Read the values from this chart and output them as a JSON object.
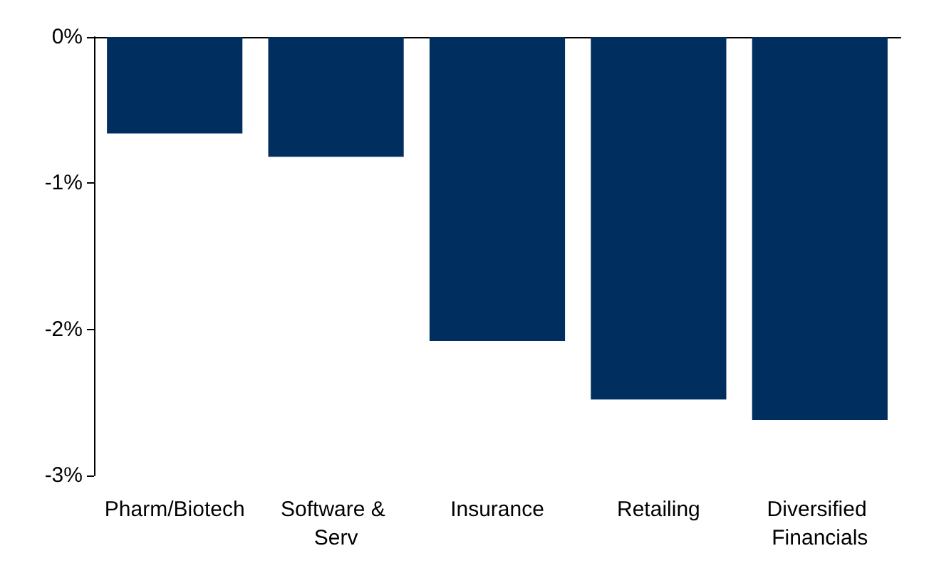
{
  "chart_data": {
    "type": "bar",
    "categories": [
      "Pharm/Biotech",
      "Software & Serv",
      "Insurance",
      "Retailing",
      "Diversified Financials"
    ],
    "values": [
      -0.66,
      -0.82,
      -2.08,
      -2.48,
      -2.62
    ],
    "color": "#002f5f",
    "ylim": [
      -3,
      0
    ],
    "yticks": [
      {
        "value": -3,
        "label": "-3%"
      },
      {
        "value": -2,
        "label": "-2%"
      },
      {
        "value": -1,
        "label": "-1%"
      },
      {
        "value": 0,
        "label": "0%"
      }
    ],
    "grid": false
  }
}
